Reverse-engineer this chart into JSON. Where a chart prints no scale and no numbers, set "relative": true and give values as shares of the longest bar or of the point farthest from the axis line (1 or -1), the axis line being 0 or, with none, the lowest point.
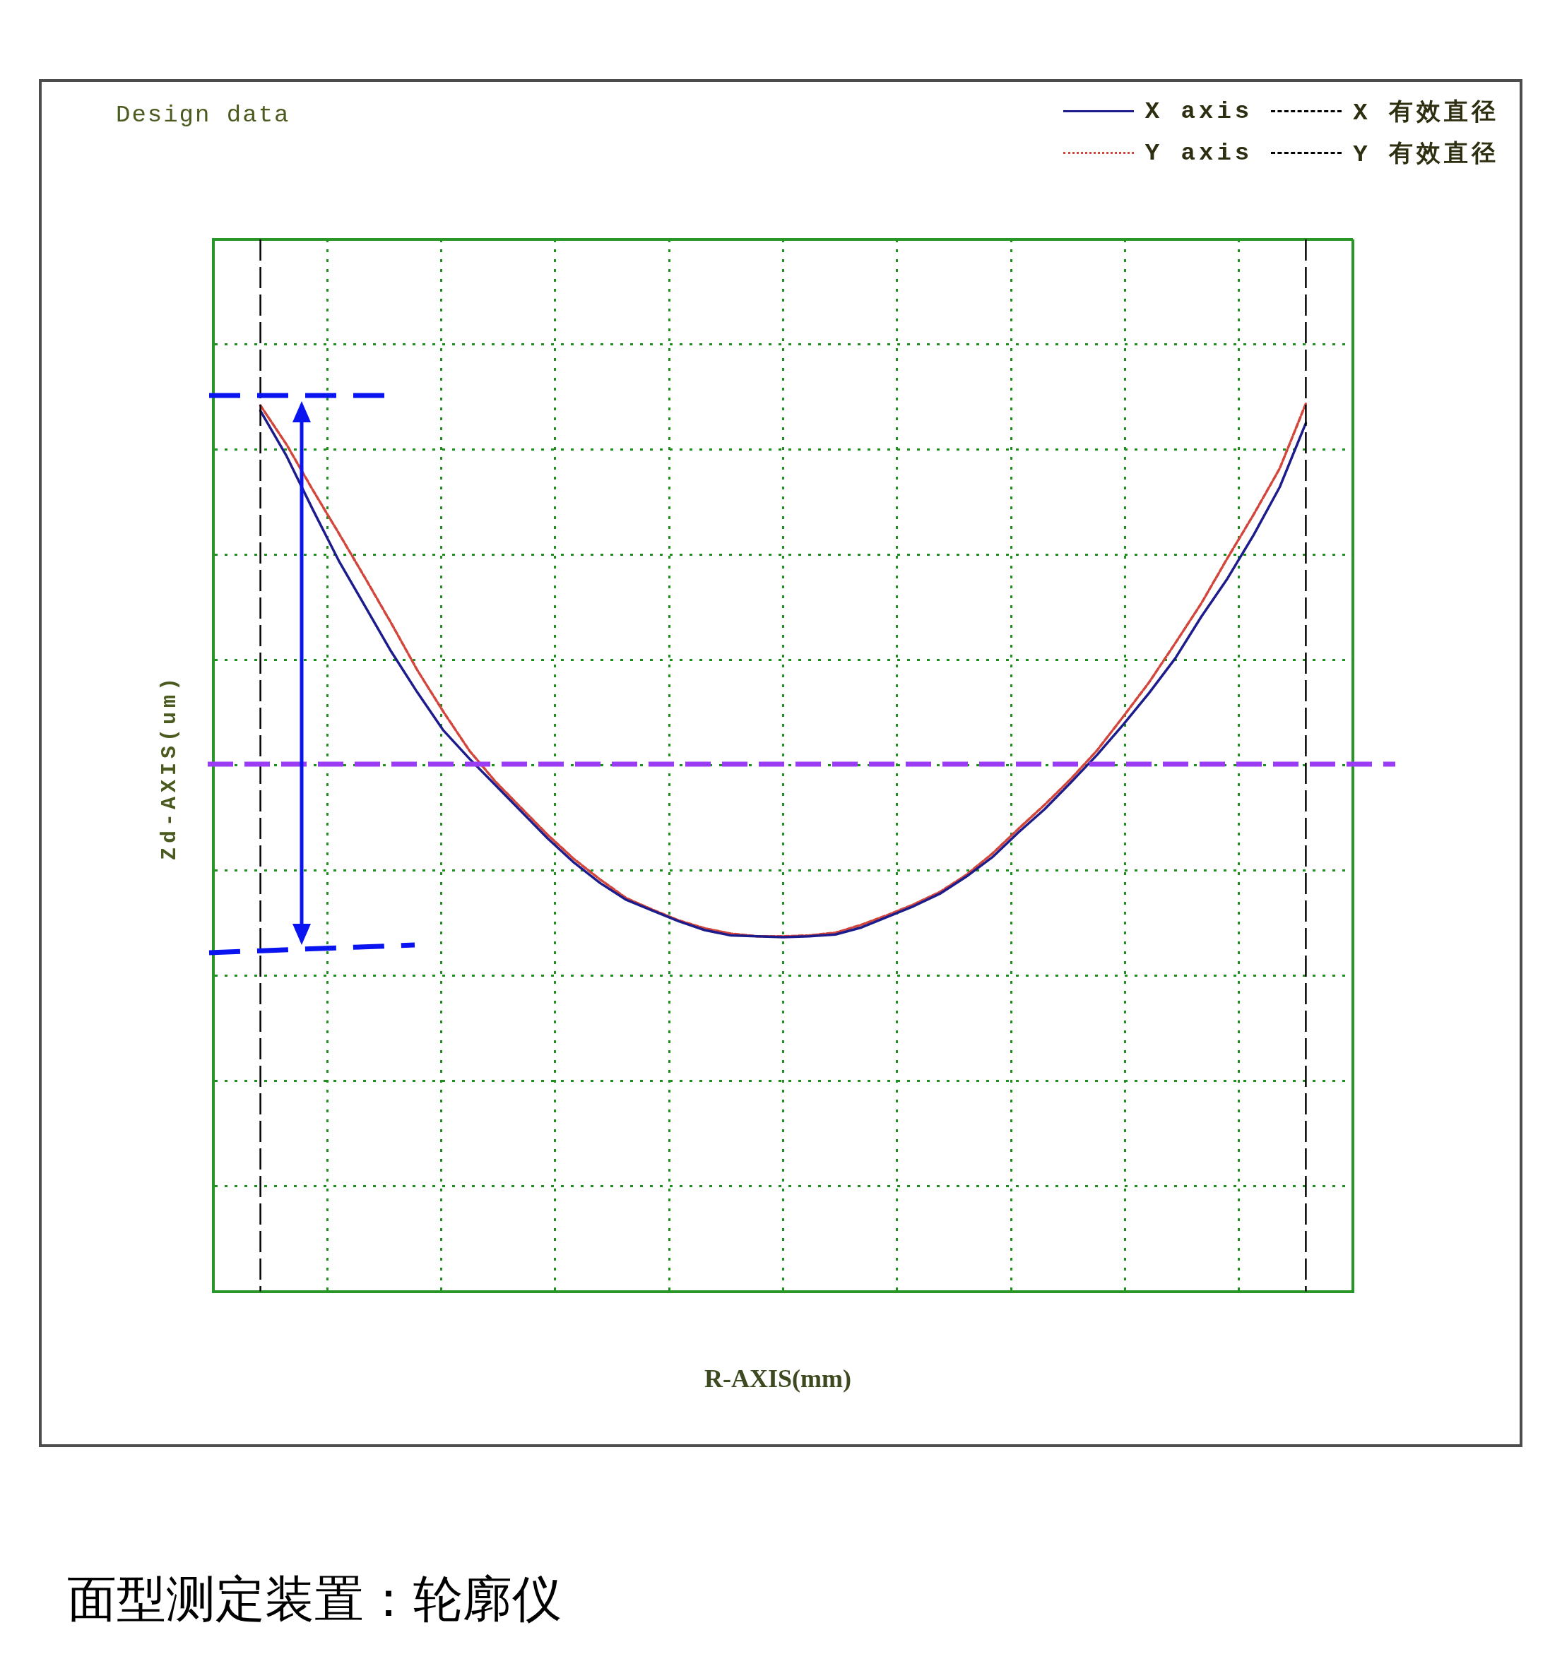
{
  "chart_data": {
    "type": "line",
    "title": "Design data",
    "xlabel": "R-AXIS(mm)",
    "ylabel": "Zd-AXIS(um)",
    "relative": true,
    "categories": [
      null,
      null,
      null,
      null,
      null,
      null,
      null,
      null,
      null,
      null,
      null,
      null,
      null,
      null,
      null,
      null,
      null,
      null,
      null,
      null,
      null,
      null,
      null,
      null,
      null,
      null,
      null,
      null,
      null,
      null,
      null,
      null,
      null,
      null,
      null,
      null,
      null,
      null,
      null,
      null,
      null
    ],
    "series": [
      {
        "name": "X axis",
        "color": "#1c1c8c",
        "values": [
          0.992,
          0.941,
          0.881,
          0.823,
          0.772,
          0.721,
          0.675,
          0.632,
          0.6,
          0.57,
          0.54,
          0.51,
          0.483,
          0.46,
          0.441,
          0.429,
          0.417,
          0.407,
          0.401,
          0.4,
          0.399,
          0.4,
          0.402,
          0.41,
          0.422,
          0.434,
          0.448,
          0.467,
          0.489,
          0.517,
          0.543,
          0.573,
          0.604,
          0.638,
          0.674,
          0.713,
          0.76,
          0.803,
          0.852,
          0.906,
          0.978
        ]
      },
      {
        "name": "Y axis",
        "color": "#d2463c",
        "line_style": "dotted",
        "values": [
          0.998,
          0.954,
          0.903,
          0.854,
          0.804,
          0.753,
          0.7,
          0.653,
          0.609,
          0.574,
          0.544,
          0.514,
          0.487,
          0.464,
          0.443,
          0.43,
          0.418,
          0.409,
          0.403,
          0.4,
          0.4,
          0.401,
          0.404,
          0.413,
          0.424,
          0.436,
          0.45,
          0.469,
          0.493,
          0.521,
          0.548,
          0.577,
          0.609,
          0.647,
          0.686,
          0.73,
          0.775,
          0.826,
          0.875,
          0.927,
          1.0
        ]
      }
    ],
    "ref_lines": [
      {
        "axis": "y",
        "value": 0.594,
        "color": "#9b3cf5",
        "line_style": "dashed"
      }
    ],
    "grid": true,
    "legend": "top right",
    "marker": "none",
    "line_style": "solid",
    "annotations": [
      "X 有效直径",
      "Y 有效直径",
      "面型测定装置：轮廓仪"
    ]
  }
}
